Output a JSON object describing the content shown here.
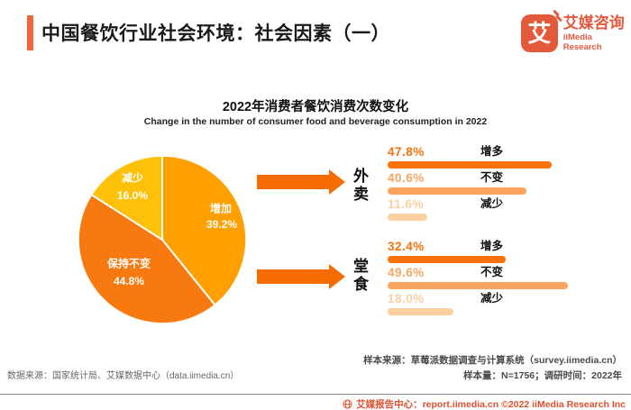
{
  "header": {
    "title": "中国餐饮行业社会环境：社会因素（一）",
    "logo": {
      "glyph": "艾",
      "name_cn": "艾媒咨询",
      "name_en": "iiMedia Research"
    }
  },
  "chart_data": {
    "type": "pie",
    "title": "2022年消费者餐饮消费次数变化",
    "subtitle": "Change in the number of consumer food and beverage consumption in 2022",
    "pie": {
      "start_angle_deg": 0,
      "clockwise": true,
      "segments": [
        {
          "label": "增加",
          "value": 39.2,
          "display": "39.2%",
          "color": "#FFA000"
        },
        {
          "label": "保持不变",
          "value": 44.8,
          "display": "44.8%",
          "color": "#F8790F"
        },
        {
          "label": "减少",
          "value": 16.0,
          "display": "16.0%",
          "color": "#FFC107"
        }
      ]
    },
    "bar_groups": [
      {
        "group": "外卖",
        "bars": [
          {
            "label": "增多",
            "value": 47.8,
            "display": "47.8%",
            "color": "#F87109"
          },
          {
            "label": "不变",
            "value": 40.6,
            "display": "40.6%",
            "color": "#FAA45F"
          },
          {
            "label": "减少",
            "value": 11.6,
            "display": "11.6%",
            "color": "#FCCFA0"
          }
        ]
      },
      {
        "group": "堂食",
        "bars": [
          {
            "label": "增多",
            "value": 32.4,
            "display": "32.4%",
            "color": "#F87109"
          },
          {
            "label": "不变",
            "value": 49.6,
            "display": "49.6%",
            "color": "#FAA45F"
          },
          {
            "label": "减少",
            "value": 18.0,
            "display": "18.0%",
            "color": "#FCCFA0"
          }
        ]
      }
    ]
  },
  "footer": {
    "data_source": "数据来源：国家统计局、艾媒数据中心（data.iimedia.cn）",
    "sample_source": "样本来源：草莓派数据调查与计算系统（survey.iimedia.cn）",
    "sample_size": "样本量：N=1756；调研时间：2022年",
    "report_bar": "艾媒报告中心：report.iimedia.cn  ©2022  iiMedia Research Inc"
  },
  "colors": {
    "accent_bar": "#F0653C",
    "arrow": "#F76C00",
    "logo": "#E2593C",
    "footer_link": "#DD4F2E",
    "divider": "#8C8C8C"
  }
}
